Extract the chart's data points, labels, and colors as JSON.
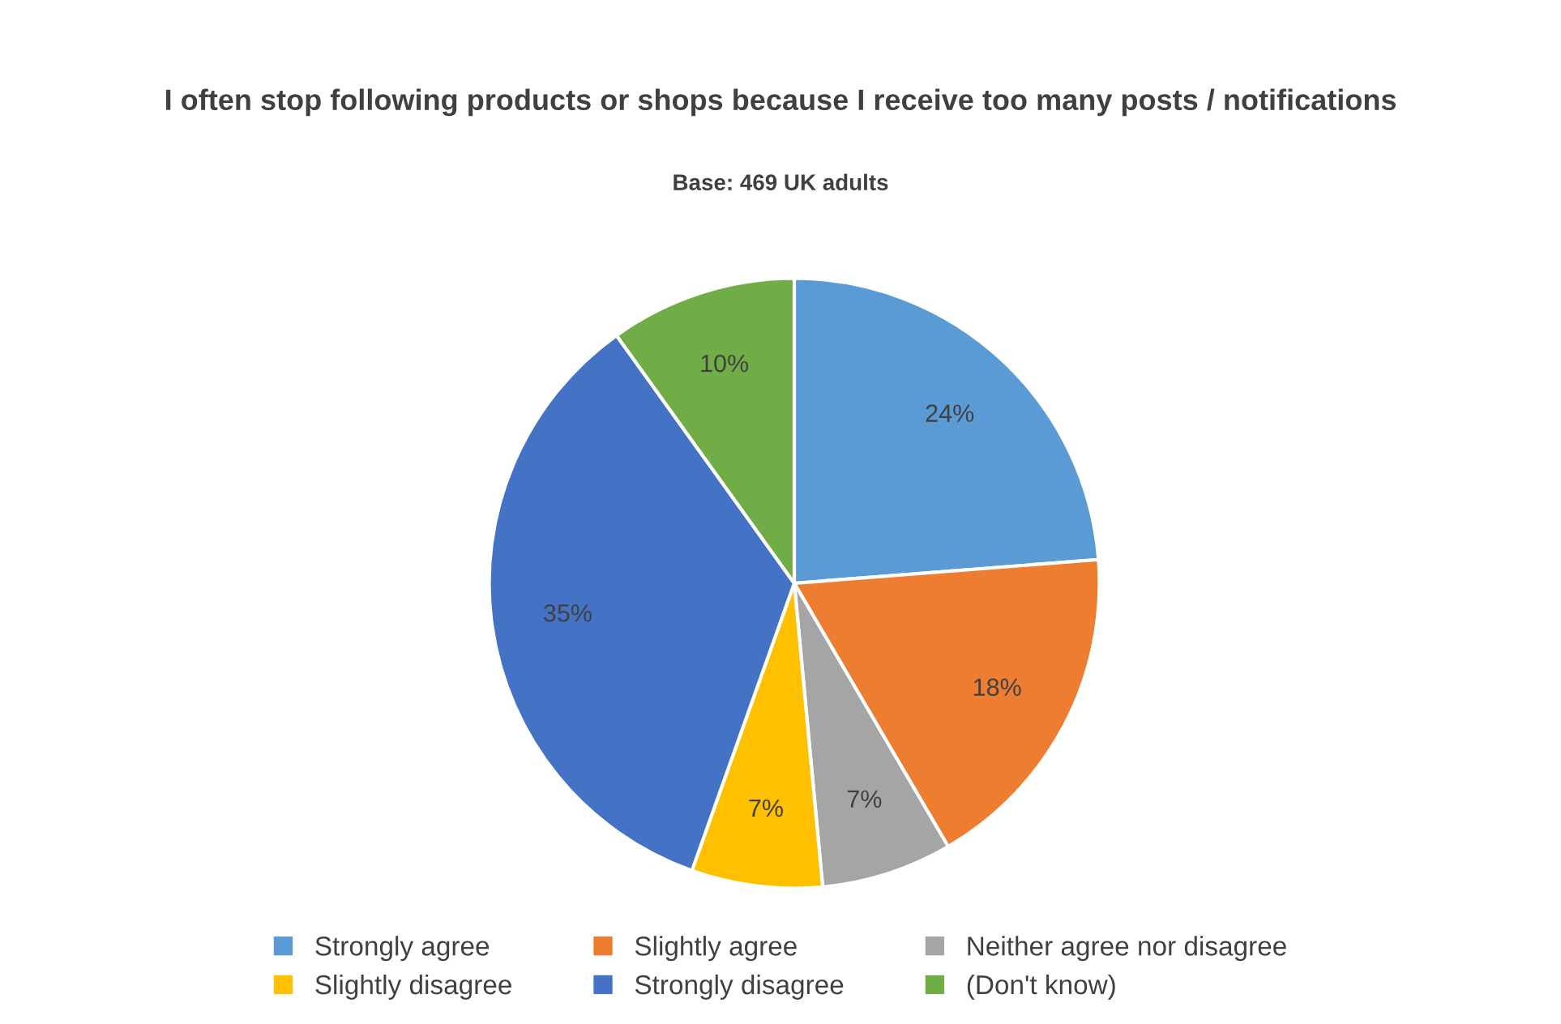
{
  "chart_data": {
    "type": "pie",
    "title": "I often stop following products or shops because I receive too many posts / notifications",
    "subtitle": "Base: 469 UK adults",
    "categories": [
      "Strongly agree",
      "Slightly agree",
      "Neither agree nor disagree",
      "Slightly disagree",
      "Strongly disagree",
      "(Don't know)"
    ],
    "values": [
      24,
      18,
      7,
      7,
      35,
      10
    ],
    "value_labels": [
      "24%",
      "18%",
      "7%",
      "7%",
      "35%",
      "10%"
    ],
    "colors": [
      "#5b9bd5",
      "#ed7d31",
      "#a5a5a5",
      "#ffc000",
      "#4472c4",
      "#70ad47"
    ],
    "legend": "bottom"
  }
}
